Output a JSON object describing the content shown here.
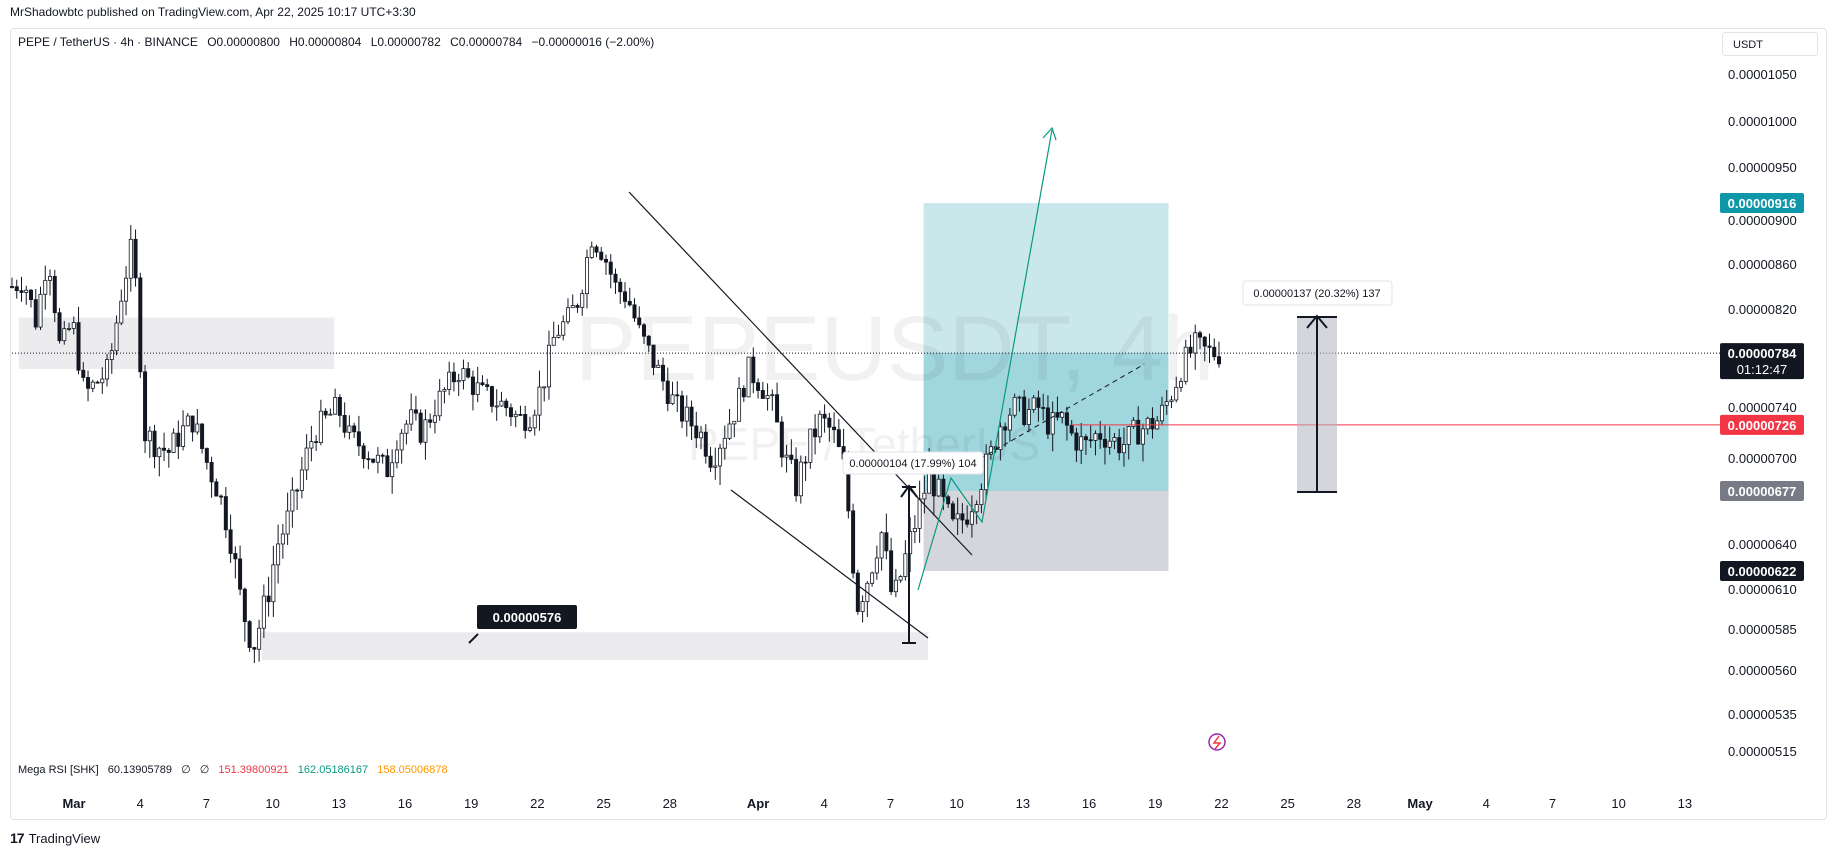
{
  "publisher": "MrShadowbtc published on TradingView.com, Apr 22, 2025 10:17 UTC+3:30",
  "legend": {
    "symbol": "PEPE / TetherUS · 4h · BINANCE",
    "open": "O0.00000800",
    "high": "H0.00000804",
    "low": "L0.00000782",
    "close": "C0.00000784",
    "change": "−0.00000016 (−2.00%)"
  },
  "unit_button": "USDT",
  "watermark": {
    "main": "PEPEUSDT, 4h",
    "sub": "PEPE / TetherUS"
  },
  "colors": {
    "up": "#131722",
    "accent_teal": "#0e97a8",
    "stop_red": "#f23645",
    "grey_label": "#787b86",
    "dark_label": "#131722"
  },
  "chart_data": {
    "type": "candlestick",
    "symbol": "PEPE / TetherUS",
    "timeframe": "4h",
    "exchange": "BINANCE",
    "y_ticks": [
      "0.00001050",
      "0.00001000",
      "0.00000950",
      "0.00000900",
      "0.00000860",
      "0.00000820",
      "0.00000740",
      "0.00000700",
      "0.00000640",
      "0.00000610",
      "0.00000585",
      "0.00000560",
      "0.00000535",
      "0.00000515"
    ],
    "ylim": [
      5.12e-06,
      1.065e-05
    ],
    "x_ticks": [
      "Mar",
      "4",
      "7",
      "10",
      "13",
      "16",
      "19",
      "22",
      "25",
      "28",
      "Apr",
      "4",
      "7",
      "10",
      "13",
      "16",
      "19",
      "22",
      "25",
      "28",
      "May",
      "4",
      "7",
      "10",
      "13"
    ],
    "price_labels": [
      {
        "text": "0.00000916",
        "value": 9.16e-06,
        "kind": "target"
      },
      {
        "text": "0.00000784",
        "value": 7.84e-06,
        "kind": "last",
        "countdown": "01:12:47"
      },
      {
        "text": "0.00000726",
        "value": 7.26e-06,
        "kind": "stop"
      },
      {
        "text": "0.00000677",
        "value": 6.77e-06,
        "kind": "entry"
      },
      {
        "text": "0.00000622",
        "value": 6.22e-06,
        "kind": "low"
      }
    ],
    "annotations": {
      "support_label": "0.00000576",
      "measure_1": "0.00000104 (17.99%) 104",
      "measure_2": "0.00000137 (20.32%) 137"
    },
    "zones": [
      {
        "name": "resistance",
        "from": "Mar 1",
        "to": "Mar 13",
        "low": 7.71e-06,
        "high": 8.13e-06
      },
      {
        "name": "support",
        "from": "Mar 10",
        "to": "Apr 10",
        "low": 5.66e-06,
        "high": 5.83e-06
      },
      {
        "name": "target",
        "from": "Apr 10",
        "to": "Apr 22",
        "low": 6.77e-06,
        "high": 9.16e-06
      },
      {
        "name": "stop",
        "from": "Apr 10",
        "to": "Apr 22",
        "low": 6.22e-06,
        "high": 6.77e-06
      }
    ],
    "series": [
      {
        "name": "price",
        "values": [
          8.4e-06,
          8.45e-06,
          8.1e-06,
          8.7e-06,
          7.85e-06,
          8.1e-06,
          7.5e-06,
          7.6e-06,
          7.7e-06,
          8.3e-06,
          8.8e-06,
          7.2e-06,
          7.1e-06,
          7.05e-06,
          7.2e-06,
          7.3e-06,
          7e-06,
          6.8e-06,
          6.5e-06,
          6e-06,
          5.75e-06,
          6e-06,
          6.4e-06,
          6.6e-06,
          6.9e-06,
          7.2e-06,
          7.3e-06,
          7.4e-06,
          7.15e-06,
          7.1e-06,
          7e-06,
          6.9e-06,
          7.2e-06,
          7.3e-06,
          7.2e-06,
          7.4e-06,
          7.55e-06,
          7.7e-06,
          7.6e-06,
          7.5e-06,
          7.45e-06,
          7.4e-06,
          7.3e-06,
          7.35e-06,
          7.6e-06,
          8e-06,
          8.1e-06,
          8.3e-06,
          8.85e-06,
          8.7e-06,
          8.4e-06,
          8.3e-06,
          8e-06,
          7.8e-06,
          7.6e-06,
          7.4e-06,
          7.3e-06,
          7.2e-06,
          7e-06,
          7.2e-06,
          7.4e-06,
          7.7e-06,
          7.6e-06,
          7.4e-06,
          7e-06,
          6.8e-06,
          7.1e-06,
          7.3e-06,
          7.2e-06,
          6.9e-06,
          6e-06,
          6.2e-06,
          6.5e-06,
          6e-06,
          6.3e-06,
          6.6e-06,
          6.9e-06,
          6.7e-06,
          6.5e-06,
          6.6e-06,
          6.8e-06,
          7e-06,
          7.3e-06,
          7.4e-06,
          7.35e-06,
          7.4e-06,
          7.25e-06,
          7.3e-06,
          7.15e-06,
          7.1e-06,
          7.2e-06,
          7.15e-06,
          7.1e-06,
          7.2e-06,
          7.25e-06,
          7.3e-06,
          7.5e-06,
          7.75e-06,
          7.9e-06,
          7.85e-06,
          7.84e-06
        ]
      }
    ]
  },
  "rsi": {
    "name": "Mega RSI [SHK]",
    "v1": "60.13905789",
    "v2": "∅",
    "v3": "∅",
    "v4": "151.39800921",
    "v5": "162.05186167",
    "v6": "158.05006878"
  },
  "brand": "TradingView"
}
